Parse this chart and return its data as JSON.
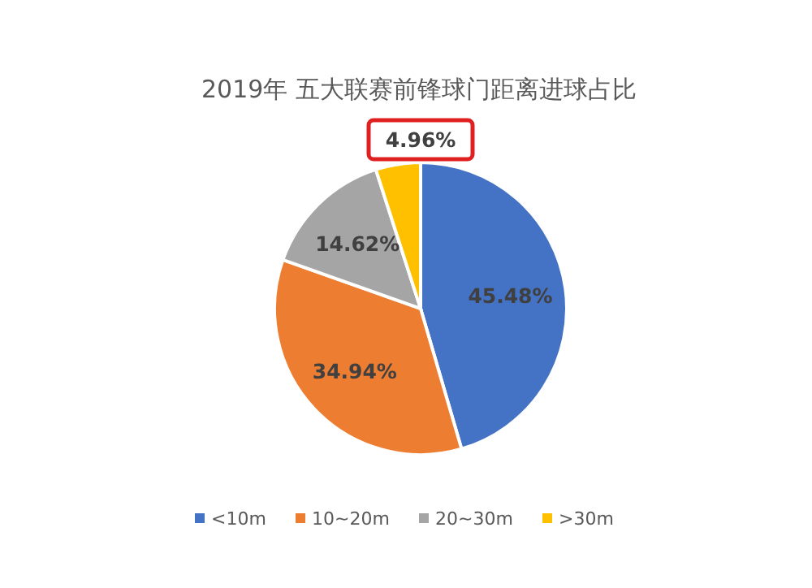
{
  "chart_data": {
    "type": "pie",
    "title": "2019年 五大联赛前锋球门距离进球占比",
    "categories": [
      "<10m",
      "10~20m",
      "20~30m",
      ">30m"
    ],
    "values": [
      45.48,
      34.94,
      14.62,
      4.96
    ],
    "colors": [
      "#4472c4",
      "#ed7d31",
      "#a5a5a5",
      "#ffc000"
    ],
    "value_labels": [
      "45.48%",
      "34.94%",
      "14.62%",
      "4.96%"
    ],
    "legend": "bottom"
  }
}
